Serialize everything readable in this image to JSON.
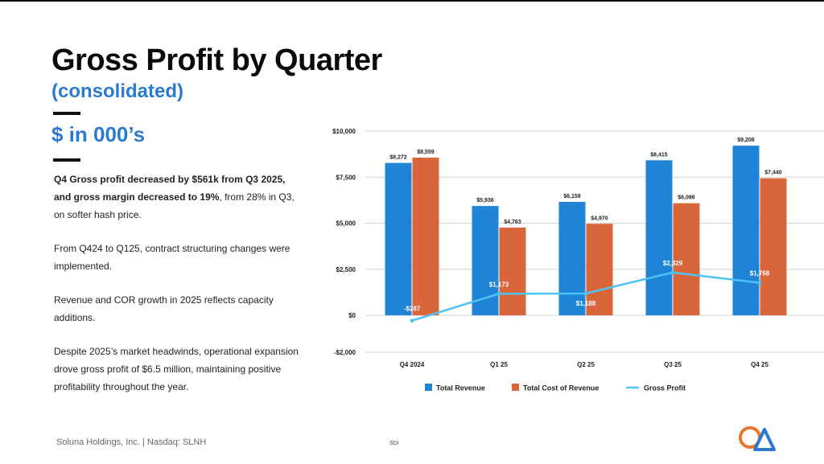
{
  "slide": {
    "title": "Gross Profit by Quarter",
    "subtitle": "(consolidated)",
    "units": "$ in 000’s",
    "para1_bold": "Q4 Gross profit decreased by $561k from Q3 2025, and gross margin decreased to 19%",
    "para1_rest": ", from 28% in Q3, on softer hash price.",
    "para2": "From Q424 to Q125, contract structuring changes were implemented.",
    "para3": "Revenue and COR growth in 2025 reflects capacity additions.",
    "para4": "Despite 2025’s market headwinds, operational expansion drove gross profit of $6.5 million, maintaining positive profitability throughout the year.",
    "footer_left": "Soluna Holdings, Inc. | Nasdaq: SLNH",
    "footer_mid": "SDI"
  },
  "colors": {
    "revenue": "#1f84d6",
    "cost": "#d9653b",
    "gross_profit": "#4ec3f5",
    "accent": "#2a7bd0"
  },
  "chart_data": {
    "type": "bar",
    "categories": [
      "Q4 2024",
      "Q1 25",
      "Q2 25",
      "Q3 25",
      "Q4 25"
    ],
    "series": [
      {
        "name": "Total Revenue",
        "kind": "bar",
        "values": [
          8272,
          5936,
          6158,
          8415,
          9208
        ],
        "labels": [
          "$8,272",
          "$5,936",
          "$6,158",
          "$8,415",
          "$9,208"
        ]
      },
      {
        "name": "Total Cost of Revenue",
        "kind": "bar",
        "values": [
          8559,
          4763,
          4970,
          6086,
          7440
        ],
        "labels": [
          "$8,559",
          "$4,763",
          "$4,970",
          "$6,086",
          "$7,440"
        ]
      },
      {
        "name": "Gross Profit",
        "kind": "line",
        "values": [
          -287,
          1173,
          1188,
          2329,
          1768
        ],
        "labels": [
          "-$287",
          "$1,173",
          "$1,188",
          "$2,329",
          "$1,768"
        ]
      }
    ],
    "y_ticks": [
      10000,
      7500,
      5000,
      2500,
      0,
      -2000
    ],
    "y_tick_labels": [
      "$10,000",
      "$7,500",
      "$5,000",
      "$2,500",
      "$0",
      "-$2,000"
    ],
    "ylim": [
      -2000,
      10000
    ],
    "grid": true,
    "legend": "bottom",
    "title": "",
    "xlabel": "",
    "ylabel": ""
  }
}
